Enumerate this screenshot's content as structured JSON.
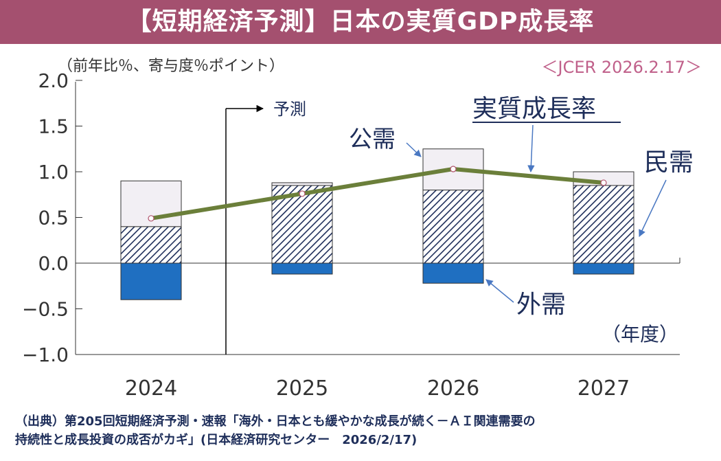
{
  "header": {
    "title": "【短期経済予測】日本の実質GDP成長率",
    "unit_label": "（前年比％、寄与度％ポイント）",
    "source_tag": "＜JCER 2026.2.17＞"
  },
  "colors": {
    "title_bg": "#a4506f",
    "public_demand": "#f2eff4",
    "private_demand_hatch": "#1e2e5a",
    "external_demand": "#1f6fc1",
    "growth_line": "#6b7f3a",
    "arrow": "#4a78c2"
  },
  "chart_data": {
    "type": "bar",
    "stacked": true,
    "categories": [
      "2024",
      "2025",
      "2026",
      "2027"
    ],
    "ylim": [
      -1.0,
      2.0
    ],
    "yticks": [
      "2.0",
      "1.5",
      "1.0",
      "0.5",
      "0.0",
      "−0.5",
      "−1.0"
    ],
    "ytick_values": [
      2.0,
      1.5,
      1.0,
      0.5,
      0.0,
      -0.5,
      -1.0
    ],
    "xlabel": "（年度）",
    "ylabel": "（前年比％、寄与度％ポイント）",
    "series": [
      {
        "name": "民需",
        "style": "hatched",
        "values": [
          0.4,
          0.85,
          0.8,
          0.85
        ]
      },
      {
        "name": "公需",
        "style": "light",
        "values": [
          0.5,
          0.03,
          0.45,
          0.15
        ]
      },
      {
        "name": "外需",
        "style": "blue",
        "values": [
          -0.4,
          -0.12,
          -0.22,
          -0.12
        ]
      },
      {
        "name": "実質成長率",
        "type": "line",
        "values": [
          0.49,
          0.76,
          1.03,
          0.88
        ]
      }
    ],
    "forecast_marker": {
      "label": "予測",
      "after_category": "2024"
    },
    "annotations": {
      "public": "公需",
      "private": "民需",
      "external": "外需",
      "growth": "実質成長率"
    }
  },
  "footnote": {
    "line1": "（出典）第205回短期経済予測・速報「海外・日本とも緩やかな成長が続く－ＡＩ関連需要の",
    "line2": "持続性と成長投資の成否がカギ」(日本経済研究センター　2026/2/17)"
  }
}
